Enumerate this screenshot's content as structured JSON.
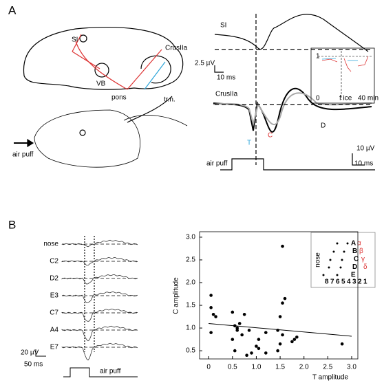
{
  "panel_a": {
    "label": "A",
    "brain_labels": [
      "SI",
      "VB",
      "CrusIIa",
      "pons",
      "tr.n."
    ],
    "stimulus": "air puff",
    "traces": {
      "si_label": "SI",
      "scale_1": [
        "2.5 µV",
        "10 ms"
      ],
      "crus_label": "CrusIIa",
      "components": [
        "T",
        "C",
        "D"
      ],
      "scale_2": [
        "10 µV",
        "10 ms"
      ],
      "stimulus": "air puff",
      "inset": {
        "ticks": [
          "1",
          "0"
        ],
        "labels": [
          "f ice",
          "40 min"
        ]
      }
    }
  },
  "panel_b": {
    "label": "B",
    "whiskers": [
      "nose",
      "C2",
      "D2",
      "E3",
      "C7",
      "A4",
      "E7"
    ],
    "scale": [
      "20 µV",
      "50 ms"
    ],
    "stimulus": "air puff",
    "inset": {
      "title": "nose",
      "rows": [
        "A",
        "B",
        "C",
        "D",
        "E"
      ],
      "greek": [
        "α",
        "β",
        "γ",
        "δ"
      ],
      "arcs": [
        "8",
        "7",
        "6",
        "5",
        "4",
        "3",
        "2",
        "1"
      ]
    }
  },
  "chart_data": {
    "type": "scatter",
    "xlabel": "T amplitude",
    "ylabel": "C amplitude",
    "color": "#000000",
    "x": [
      0.05,
      0.05,
      0.05,
      0.1,
      0.15,
      0.5,
      0.5,
      0.55,
      0.55,
      0.6,
      0.6,
      0.65,
      0.7,
      0.75,
      0.8,
      0.85,
      0.9,
      1.0,
      1.05,
      1.05,
      1.2,
      1.2,
      1.45,
      1.45,
      1.5,
      1.5,
      1.55,
      1.55,
      1.6,
      1.55,
      1.75,
      1.8,
      1.85,
      2.8
    ],
    "values": [
      1.72,
      1.45,
      0.9,
      1.3,
      1.25,
      1.35,
      0.75,
      1.05,
      0.5,
      0.95,
      1.0,
      1.1,
      0.85,
      1.3,
      0.4,
      0.95,
      0.45,
      0.6,
      0.55,
      0.75,
      0.9,
      0.45,
      0.95,
      0.5,
      1.25,
      0.65,
      2.8,
      1.55,
      1.65,
      0.85,
      0.7,
      0.75,
      0.8,
      0.65
    ],
    "fit_line": {
      "x": [
        0,
        3.0
      ],
      "values": [
        1.1,
        0.82
      ]
    },
    "xlim": [
      -0.19,
      3.13
    ],
    "ylim": [
      0.32,
      3.12
    ],
    "xticks": [
      0,
      0.5,
      {
        "value": 1,
        "label": "1.0"
      },
      1.5,
      {
        "value": 2,
        "label": "2.0"
      },
      2.5,
      {
        "value": 3,
        "label": "3.0"
      }
    ],
    "yticks": [
      0.5,
      {
        "value": 1,
        "label": "1.0"
      },
      1.5,
      {
        "value": 2,
        "label": "2.0"
      },
      2.5,
      {
        "value": 3,
        "label": "3.0"
      }
    ]
  }
}
